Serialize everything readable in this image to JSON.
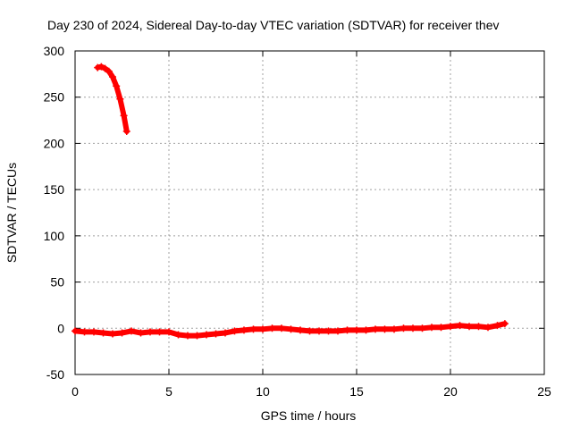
{
  "chart_data": {
    "type": "scatter",
    "title": "Day 230 of 2024, Sidereal Day-to-day VTEC variation (SDTVAR) for receiver thev",
    "xlabel": "GPS time / hours",
    "ylabel": "SDTVAR / TECUs",
    "xlim": [
      0,
      25
    ],
    "ylim": [
      -50,
      300
    ],
    "xticks": [
      0,
      5,
      10,
      15,
      20,
      25
    ],
    "yticks": [
      -50,
      0,
      50,
      100,
      150,
      200,
      250,
      300
    ],
    "grid": true,
    "legend": "none",
    "series": [
      {
        "color": "#ff0000",
        "marker": "plus",
        "points": [
          [
            1.2,
            282
          ],
          [
            1.4,
            283
          ],
          [
            1.6,
            281
          ],
          [
            1.8,
            278
          ],
          [
            2.0,
            272
          ],
          [
            2.2,
            262
          ],
          [
            2.4,
            248
          ],
          [
            2.6,
            230
          ],
          [
            2.75,
            213
          ]
        ]
      },
      {
        "color": "#ff0000",
        "marker": "plus",
        "points": [
          [
            0.0,
            -3
          ],
          [
            0.5,
            -4
          ],
          [
            1.0,
            -4
          ],
          [
            1.5,
            -5
          ],
          [
            2.0,
            -6
          ],
          [
            2.5,
            -5
          ],
          [
            3.0,
            -3
          ],
          [
            3.5,
            -5
          ],
          [
            4.0,
            -4
          ],
          [
            4.5,
            -4
          ],
          [
            5.0,
            -4
          ],
          [
            5.5,
            -7
          ],
          [
            6.0,
            -8
          ],
          [
            6.5,
            -8
          ],
          [
            7.0,
            -7
          ],
          [
            7.5,
            -6
          ],
          [
            8.0,
            -5
          ],
          [
            8.5,
            -3
          ],
          [
            9.0,
            -2
          ],
          [
            9.5,
            -1
          ],
          [
            10.0,
            -1
          ],
          [
            10.5,
            0
          ],
          [
            11.0,
            0
          ],
          [
            11.5,
            -1
          ],
          [
            12.0,
            -2
          ],
          [
            12.5,
            -3
          ],
          [
            13.0,
            -3
          ],
          [
            13.5,
            -3
          ],
          [
            14.0,
            -3
          ],
          [
            14.5,
            -2
          ],
          [
            15.0,
            -2
          ],
          [
            15.5,
            -2
          ],
          [
            16.0,
            -1
          ],
          [
            16.5,
            -1
          ],
          [
            17.0,
            -1
          ],
          [
            17.5,
            0
          ],
          [
            18.0,
            0
          ],
          [
            18.5,
            0
          ],
          [
            19.0,
            1
          ],
          [
            19.5,
            1
          ],
          [
            20.0,
            2
          ],
          [
            20.5,
            3
          ],
          [
            21.0,
            2
          ],
          [
            21.5,
            2
          ],
          [
            22.0,
            1
          ],
          [
            22.5,
            3
          ],
          [
            22.9,
            5
          ]
        ]
      }
    ]
  }
}
